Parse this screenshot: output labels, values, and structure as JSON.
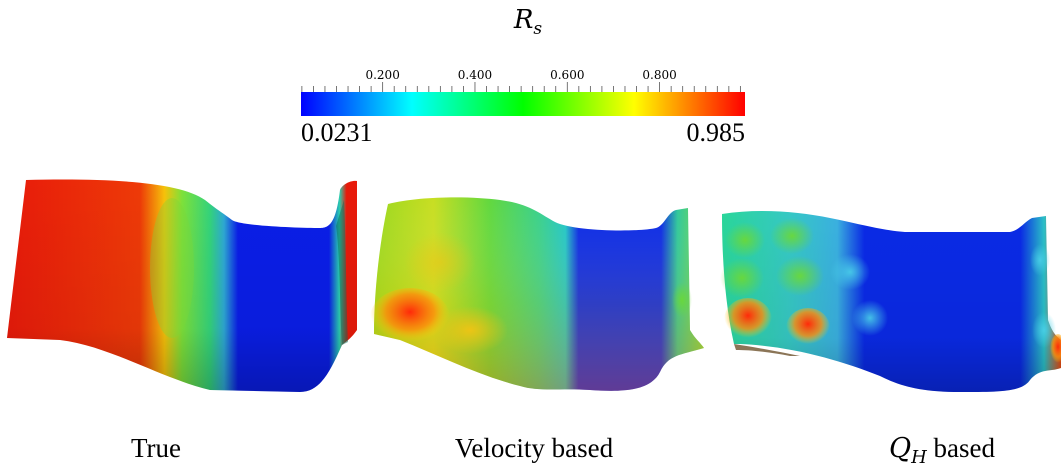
{
  "colorbar": {
    "title_main": "R",
    "title_sub": "s",
    "min_label": "0.0231",
    "max_label": "0.985",
    "min_value": 0.0231,
    "max_value": 0.985,
    "ticks": [
      {
        "value": 0.2,
        "label": "0.200"
      },
      {
        "value": 0.4,
        "label": "0.400"
      },
      {
        "value": 0.6,
        "label": "0.600"
      },
      {
        "value": 0.8,
        "label": "0.800"
      }
    ],
    "colormap": [
      "#0000ff",
      "#00ffff",
      "#00ff00",
      "#ffff00",
      "#ff0000"
    ]
  },
  "panels": [
    {
      "id": "true",
      "caption": "True"
    },
    {
      "id": "velocity",
      "caption": "Velocity based"
    },
    {
      "id": "qh",
      "caption_main": "Q",
      "caption_sub": "H",
      "caption_rest": " based"
    }
  ]
}
